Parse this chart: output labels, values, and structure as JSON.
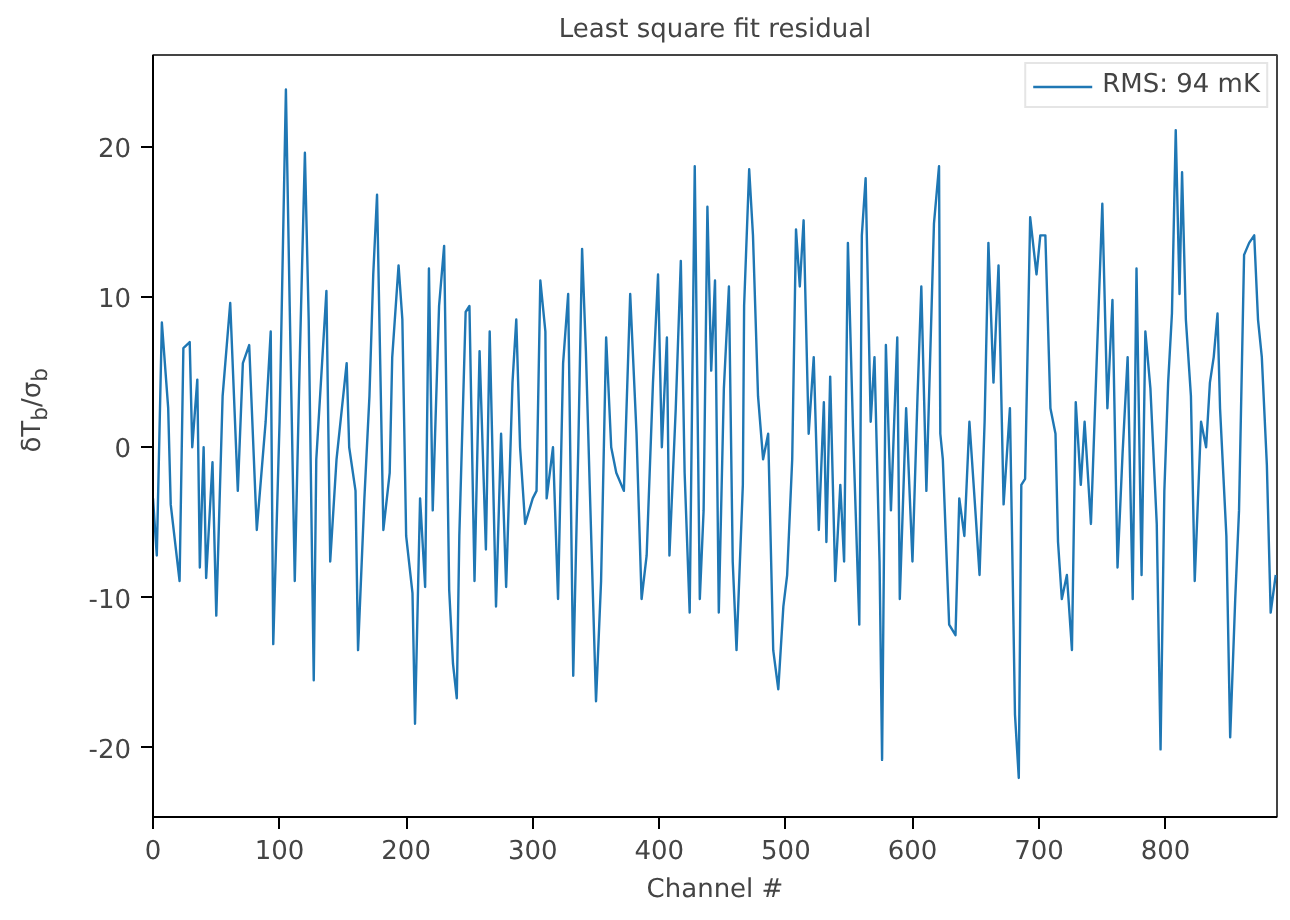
{
  "chart_data": {
    "type": "line",
    "title": "Least square fit residual",
    "xlabel": "Channel #",
    "ylabel": "δT$_{b}$/σ$_{b}$",
    "xlim": [
      0,
      888
    ],
    "ylim": [
      -24.6,
      26.1
    ],
    "xticks": [
      0,
      100,
      200,
      300,
      400,
      500,
      600,
      700,
      800
    ],
    "yticks": [
      -20,
      -10,
      0,
      10,
      20
    ],
    "grid": false,
    "legend": "top right",
    "line_style": "solid",
    "marker": "none",
    "series": [
      {
        "name": "RMS: 94 mK",
        "color": "#1f77b4",
        "x": [
          0,
          3,
          7,
          12,
          14,
          21,
          24,
          29,
          31,
          35,
          37,
          40,
          42,
          47,
          50,
          55,
          61,
          67,
          71,
          76,
          82,
          89,
          93,
          95,
          100,
          105,
          108,
          112,
          116,
          120,
          123,
          127,
          129,
          137,
          140,
          145,
          153,
          155,
          160,
          162,
          167,
          171,
          174,
          177,
          182,
          187,
          189,
          194,
          197,
          200,
          205,
          207,
          211,
          215,
          218,
          221,
          226,
          230,
          234,
          237,
          240,
          242,
          247,
          250,
          254,
          258,
          263,
          266,
          271,
          275,
          279,
          284,
          287,
          290,
          294,
          300,
          303,
          306,
          310,
          311,
          316,
          320,
          324,
          328,
          332,
          336,
          339,
          342,
          345,
          350,
          354,
          358,
          362,
          366,
          372,
          377,
          382,
          386,
          390,
          395,
          399,
          402,
          406,
          408,
          413,
          417,
          420,
          424,
          428,
          432,
          435,
          438,
          441,
          444,
          447,
          451,
          455,
          458,
          461,
          466,
          467,
          471,
          474,
          478,
          482,
          486,
          490,
          494,
          498,
          501,
          505,
          508,
          511,
          514,
          518,
          522,
          526,
          530,
          532,
          535,
          539,
          543,
          546,
          549,
          553,
          558,
          560,
          563,
          567,
          570,
          574,
          576,
          579,
          583,
          588,
          590,
          595,
          600,
          604,
          607,
          611,
          617,
          621,
          622,
          624,
          629,
          634,
          637,
          641,
          645,
          650,
          653,
          657,
          660,
          664,
          668,
          672,
          677,
          681,
          684,
          686,
          689,
          693,
          698,
          701,
          705,
          709,
          713,
          715,
          718,
          722,
          726,
          729,
          733,
          736,
          741,
          746,
          750,
          754,
          758,
          762,
          766,
          770,
          774,
          777,
          781,
          784,
          788,
          793,
          796,
          799,
          802,
          805,
          808,
          811,
          813,
          816,
          820,
          823,
          828,
          832,
          835,
          838,
          841,
          843,
          848,
          851,
          855,
          858,
          862,
          866,
          870,
          873,
          876,
          880,
          883,
          887
        ],
        "values": [
          -3.4,
          -7.2,
          8.3,
          2.6,
          -3.8,
          -8.9,
          6.6,
          7.0,
          0,
          4.5,
          -8.0,
          0,
          -8.7,
          -1,
          -11.2,
          3.4,
          9.6,
          -2.9,
          5.6,
          6.8,
          -5.5,
          1.7,
          7.7,
          -13.1,
          1.7,
          23.8,
          9.4,
          -8.9,
          6.0,
          19.6,
          8.5,
          -15.5,
          -0.8,
          10.4,
          -7.6,
          -0.8,
          5.6,
          0,
          -2.9,
          -13.5,
          -3.4,
          3.4,
          11.5,
          16.8,
          -5.5,
          -1.7,
          6.0,
          12.1,
          8.5,
          -5.9,
          -9.7,
          -18.4,
          -3.4,
          -9.3,
          11.9,
          -4.2,
          9.4,
          13.4,
          -9.5,
          -14.4,
          -16.7,
          -5.9,
          9.0,
          9.4,
          -8.9,
          6.4,
          -6.8,
          7.7,
          -10.6,
          0.9,
          -9.3,
          4.3,
          8.5,
          0,
          -5.1,
          -3.4,
          -2.9,
          11.1,
          7.7,
          -3.4,
          0,
          -10.1,
          5.6,
          10.2,
          -15.2,
          0,
          13.2,
          6.4,
          -2.5,
          -16.9,
          -8.9,
          7.3,
          0,
          -1.7,
          -2.9,
          10.2,
          0.9,
          -10.1,
          -7.2,
          4.3,
          11.5,
          0,
          7.3,
          -7.2,
          2.6,
          12.4,
          -1.7,
          -11.0,
          18.7,
          -10.1,
          -4.2,
          16.0,
          5.1,
          11.1,
          -11.0,
          3.9,
          10.7,
          -7.6,
          -13.5,
          -2.5,
          9.4,
          18.5,
          14.1,
          3.4,
          -0.8,
          0.9,
          -13.5,
          -16.1,
          -10.6,
          -8.5,
          -0.8,
          14.5,
          10.7,
          15.1,
          0.9,
          6.0,
          -5.5,
          3.0,
          -6.3,
          4.7,
          -8.9,
          -2.5,
          -7.6,
          13.6,
          1.3,
          -11.8,
          14.1,
          17.9,
          1.7,
          6.0,
          -7.6,
          -20.8,
          6.8,
          -4.2,
          7.3,
          -10.1,
          2.6,
          -7.6,
          3.4,
          10.7,
          -2.9,
          14.9,
          18.7,
          0.9,
          -0.8,
          -11.8,
          -12.5,
          -3.4,
          -5.9,
          1.7,
          -4.6,
          -8.5,
          1.7,
          13.6,
          4.3,
          12.1,
          -3.8,
          2.6,
          -17.8,
          -22.0,
          -2.5,
          -2.1,
          15.3,
          11.5,
          14.1,
          14.1,
          2.6,
          0.9,
          -6.3,
          -10.1,
          -8.5,
          -13.5,
          3.0,
          -2.5,
          1.7,
          -5.1,
          6.8,
          16.2,
          2.6,
          9.8,
          -8.0,
          -0.4,
          6.0,
          -10.1,
          11.9,
          -8.5,
          7.7,
          3.9,
          -5.1,
          -20.1,
          -2.9,
          4.3,
          8.9,
          21.1,
          10.2,
          18.3,
          8.5,
          3.4,
          -8.9,
          1.7,
          0,
          4.3,
          6.0,
          8.9,
          2.6,
          -5.9,
          -19.3,
          -10.1,
          -4.2,
          12.8,
          13.6,
          14.1,
          8.5,
          6.0,
          -1.2,
          -11.0,
          -8.5
        ]
      }
    ]
  }
}
